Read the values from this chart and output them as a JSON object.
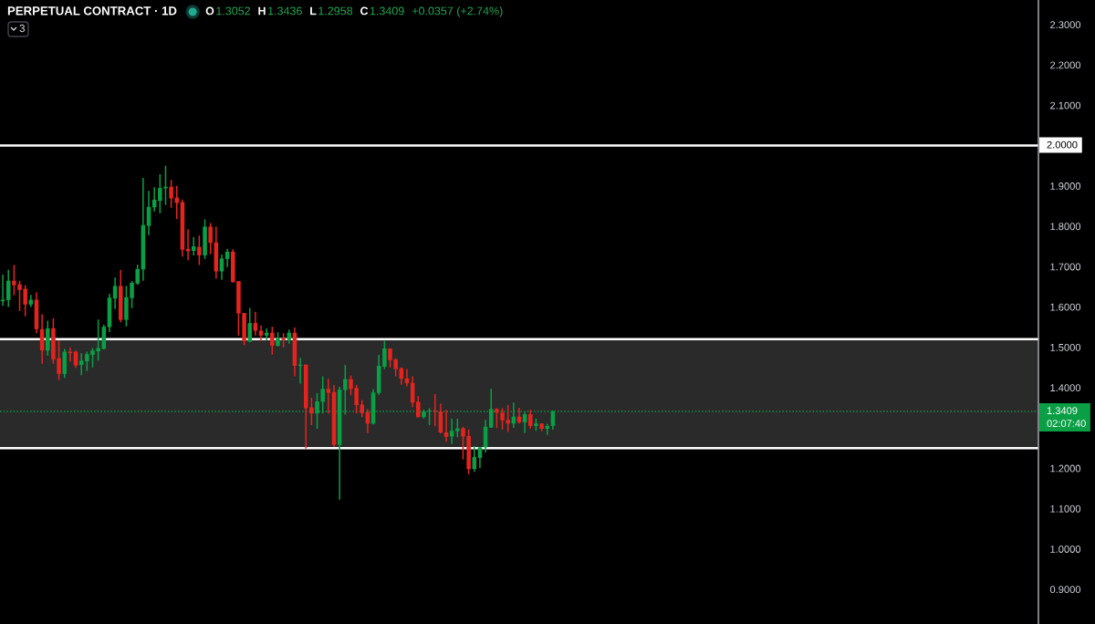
{
  "chart_data": {
    "type": "candlestick",
    "title": "PERPETUAL CONTRACT · 1D",
    "categories": [
      null,
      null,
      null,
      null,
      null,
      null,
      null,
      null,
      null,
      null,
      null,
      null,
      null,
      null,
      null,
      null,
      null,
      null,
      null,
      null,
      null,
      null,
      null,
      null,
      null,
      null,
      null,
      null,
      null,
      null,
      null,
      null,
      null,
      null,
      null,
      null,
      null,
      null,
      null,
      null,
      null,
      null,
      null,
      null,
      null,
      null,
      null,
      null,
      null,
      null,
      null,
      null,
      null,
      null,
      null,
      null,
      null,
      null,
      null,
      null,
      null,
      null,
      null,
      null,
      null,
      null,
      null,
      null,
      null,
      null,
      null,
      null,
      null,
      null,
      null,
      null,
      null,
      null,
      null,
      null,
      null,
      null,
      null,
      null,
      null,
      null,
      null,
      null,
      null,
      null,
      null,
      null,
      null,
      null,
      null,
      null,
      null,
      null,
      null,
      null,
      null,
      null,
      null,
      null,
      null,
      null,
      null,
      null,
      null,
      null,
      null,
      null,
      null,
      null,
      null,
      null,
      null,
      null,
      null,
      null,
      null,
      null,
      null,
      null,
      null,
      null,
      null,
      null,
      null,
      null,
      null,
      null,
      null,
      null,
      null,
      null,
      null,
      null,
      null,
      null,
      null,
      null,
      null,
      null,
      null,
      null,
      null,
      null,
      null,
      null,
      null,
      null,
      null,
      null,
      null,
      null,
      null,
      null,
      null,
      null,
      null,
      null,
      null,
      null,
      null,
      null,
      null,
      null,
      null,
      null,
      null,
      null,
      null,
      null,
      null,
      null,
      null,
      null,
      null,
      null,
      null,
      null,
      null,
      null,
      null
    ],
    "ohlc": [
      [
        1.614,
        1.68,
        1.603,
        1.618
      ],
      [
        1.617,
        1.692,
        1.6,
        1.665
      ],
      [
        1.665,
        1.704,
        1.629,
        1.654
      ],
      [
        1.656,
        1.665,
        1.59,
        1.642
      ],
      [
        1.645,
        1.654,
        1.577,
        1.606
      ],
      [
        1.606,
        1.63,
        1.6,
        1.618
      ],
      [
        1.618,
        1.636,
        1.535,
        1.545
      ],
      [
        1.545,
        1.582,
        1.459,
        1.492
      ],
      [
        1.492,
        1.566,
        1.479,
        1.547
      ],
      [
        1.547,
        1.572,
        1.459,
        1.47
      ],
      [
        1.473,
        1.517,
        1.419,
        1.434
      ],
      [
        1.434,
        1.496,
        1.424,
        1.489
      ],
      [
        1.489,
        1.5,
        1.465,
        1.486
      ],
      [
        1.489,
        1.492,
        1.449,
        1.455
      ],
      [
        1.456,
        1.485,
        1.431,
        1.467
      ],
      [
        1.465,
        1.489,
        1.441,
        1.483
      ],
      [
        1.481,
        1.498,
        1.45,
        1.492
      ],
      [
        1.49,
        1.569,
        1.467,
        1.498
      ],
      [
        1.496,
        1.556,
        1.495,
        1.551
      ],
      [
        1.55,
        1.633,
        1.538,
        1.623
      ],
      [
        1.621,
        1.673,
        1.595,
        1.652
      ],
      [
        1.652,
        1.692,
        1.562,
        1.568
      ],
      [
        1.568,
        1.652,
        1.552,
        1.624
      ],
      [
        1.622,
        1.664,
        1.597,
        1.66
      ],
      [
        1.658,
        1.705,
        1.655,
        1.694
      ],
      [
        1.693,
        1.92,
        1.665,
        1.803
      ],
      [
        1.801,
        1.888,
        1.778,
        1.848
      ],
      [
        1.847,
        1.897,
        1.837,
        1.866
      ],
      [
        1.863,
        1.929,
        1.832,
        1.895
      ],
      [
        1.894,
        1.95,
        1.853,
        1.898
      ],
      [
        1.898,
        1.915,
        1.846,
        1.869
      ],
      [
        1.871,
        1.9,
        1.818,
        1.858
      ],
      [
        1.86,
        1.866,
        1.725,
        1.742
      ],
      [
        1.744,
        1.793,
        1.716,
        1.738
      ],
      [
        1.739,
        1.773,
        1.728,
        1.75
      ],
      [
        1.749,
        1.777,
        1.704,
        1.728
      ],
      [
        1.728,
        1.817,
        1.719,
        1.799
      ],
      [
        1.799,
        1.808,
        1.731,
        1.759
      ],
      [
        1.76,
        1.799,
        1.67,
        1.688
      ],
      [
        1.688,
        1.73,
        1.667,
        1.72
      ],
      [
        1.719,
        1.744,
        1.699,
        1.737
      ],
      [
        1.737,
        1.743,
        1.66,
        1.662
      ],
      [
        1.664,
        1.664,
        1.529,
        1.584
      ],
      [
        1.585,
        1.585,
        1.505,
        1.515
      ],
      [
        1.514,
        1.597,
        1.513,
        1.56
      ],
      [
        1.56,
        1.588,
        1.529,
        1.541
      ],
      [
        1.541,
        1.554,
        1.515,
        1.529
      ],
      [
        1.529,
        1.547,
        1.517,
        1.536
      ],
      [
        1.536,
        1.551,
        1.482,
        1.504
      ],
      [
        1.504,
        1.537,
        1.502,
        1.523
      ],
      [
        1.523,
        1.535,
        1.5,
        1.518
      ],
      [
        1.518,
        1.544,
        1.509,
        1.536
      ],
      [
        1.536,
        1.549,
        1.428,
        1.454
      ],
      [
        1.454,
        1.474,
        1.41,
        1.457
      ],
      [
        1.457,
        1.457,
        1.249,
        1.349
      ],
      [
        1.351,
        1.375,
        1.307,
        1.336
      ],
      [
        1.336,
        1.386,
        1.298,
        1.366
      ],
      [
        1.365,
        1.428,
        1.336,
        1.397
      ],
      [
        1.397,
        1.422,
        1.336,
        1.387
      ],
      [
        1.389,
        1.406,
        1.253,
        1.258
      ],
      [
        1.258,
        1.402,
        1.122,
        1.395
      ],
      [
        1.394,
        1.456,
        1.333,
        1.421
      ],
      [
        1.421,
        1.43,
        1.381,
        1.397
      ],
      [
        1.399,
        1.407,
        1.336,
        1.357
      ],
      [
        1.358,
        1.369,
        1.327,
        1.337
      ],
      [
        1.339,
        1.347,
        1.287,
        1.311
      ],
      [
        1.311,
        1.396,
        1.309,
        1.388
      ],
      [
        1.387,
        1.481,
        1.382,
        1.454
      ],
      [
        1.452,
        1.516,
        1.446,
        1.497
      ],
      [
        1.497,
        1.497,
        1.45,
        1.468
      ],
      [
        1.47,
        1.473,
        1.428,
        1.446
      ],
      [
        1.448,
        1.45,
        1.407,
        1.422
      ],
      [
        1.423,
        1.446,
        1.403,
        1.411
      ],
      [
        1.412,
        1.428,
        1.352,
        1.363
      ],
      [
        1.365,
        1.379,
        1.326,
        1.327
      ],
      [
        1.327,
        1.346,
        1.323,
        1.341
      ],
      [
        1.341,
        1.349,
        1.307,
        1.343
      ],
      [
        1.343,
        1.384,
        1.304,
        1.341
      ],
      [
        1.341,
        1.36,
        1.286,
        1.289
      ],
      [
        1.289,
        1.345,
        1.266,
        1.278
      ],
      [
        1.279,
        1.323,
        1.26,
        1.293
      ],
      [
        1.292,
        1.323,
        1.277,
        1.299
      ],
      [
        1.299,
        1.303,
        1.222,
        1.279
      ],
      [
        1.28,
        1.296,
        1.185,
        1.198
      ],
      [
        1.198,
        1.255,
        1.191,
        1.228
      ],
      [
        1.226,
        1.253,
        1.201,
        1.252
      ],
      [
        1.252,
        1.32,
        1.239,
        1.303
      ],
      [
        1.301,
        1.397,
        1.3,
        1.347
      ],
      [
        1.347,
        1.349,
        1.3,
        1.338
      ],
      [
        1.338,
        1.349,
        1.296,
        1.319
      ],
      [
        1.32,
        1.357,
        1.29,
        1.311
      ],
      [
        1.311,
        1.363,
        1.3,
        1.328
      ],
      [
        1.328,
        1.35,
        1.311,
        1.314
      ],
      [
        1.314,
        1.339,
        1.287,
        1.334
      ],
      [
        1.334,
        1.345,
        1.298,
        1.305
      ],
      [
        1.305,
        1.323,
        1.293,
        1.311
      ],
      [
        1.311,
        1.311,
        1.292,
        1.298
      ],
      [
        1.298,
        1.31,
        1.283,
        1.305
      ],
      [
        1.3052,
        1.3436,
        1.2958,
        1.3409
      ],
      null,
      null,
      null,
      null,
      null,
      null,
      null,
      null,
      null,
      null,
      null,
      null,
      null,
      null,
      null,
      null,
      null,
      null,
      null,
      null,
      null,
      null,
      null,
      null,
      null,
      null,
      null,
      null,
      null,
      null,
      null,
      null,
      null,
      null,
      null,
      null,
      null,
      null,
      null,
      null,
      null,
      null,
      null,
      null,
      null,
      null,
      null,
      null,
      null,
      null,
      null,
      null,
      null,
      null,
      null,
      null,
      null,
      null,
      null,
      null,
      null,
      null,
      null,
      null,
      null,
      null,
      null,
      null,
      null,
      null,
      null,
      null,
      null,
      null,
      null,
      null,
      null,
      null,
      null,
      null,
      null,
      null,
      null,
      null,
      null,
      null
    ],
    "colors": [
      "#0a9e45",
      "#0a9e45",
      "#e3241f",
      "#e3241f",
      "#e3241f",
      "#0a9e45",
      "#e3241f",
      "#e3241f",
      "#0a9e45",
      "#e3241f",
      "#e3241f",
      "#0a9e45",
      "#e3241f",
      "#e3241f",
      "#0a9e45",
      "#0a9e45",
      "#0a9e45",
      "#0a9e45",
      "#0a9e45",
      "#0a9e45",
      "#0a9e45",
      "#e3241f",
      "#0a9e45",
      "#0a9e45",
      "#0a9e45",
      "#0a9e45",
      "#0a9e45",
      "#0a9e45",
      "#0a9e45",
      "#0a9e45",
      "#e3241f",
      "#e3241f",
      "#e3241f",
      "#e3241f",
      "#0a9e45",
      "#e3241f",
      "#0a9e45",
      "#e3241f",
      "#e3241f",
      "#0a9e45",
      "#0a9e45",
      "#e3241f",
      "#e3241f",
      "#e3241f",
      "#0a9e45",
      "#e3241f",
      "#e3241f",
      "#0a9e45",
      "#e3241f",
      "#0a9e45",
      "#e3241f",
      "#0a9e45",
      "#e3241f",
      "#0a9e45",
      "#e3241f",
      "#e3241f",
      "#0a9e45",
      "#0a9e45",
      "#e3241f",
      "#e3241f",
      "#0a9e45",
      "#0a9e45",
      "#e3241f",
      "#e3241f",
      "#e3241f",
      "#e3241f",
      "#0a9e45",
      "#0a9e45",
      "#0a9e45",
      "#e3241f",
      "#e3241f",
      "#e3241f",
      "#e3241f",
      "#e3241f",
      "#e3241f",
      "#0a9e45",
      "#0a9e45",
      "#e3241f",
      "#e3241f",
      "#e3241f",
      "#0a9e45",
      "#0a9e45",
      "#e3241f",
      "#e3241f",
      "#0a9e45",
      "#0a9e45",
      "#0a9e45",
      "#0a9e45",
      "#e3241f",
      "#e3241f",
      "#e3241f",
      "#0a9e45",
      "#e3241f",
      "#0a9e45",
      "#e3241f",
      "#0a9e45",
      "#e3241f",
      "#0a9e45",
      "#0a9e45",
      null,
      null,
      null,
      null,
      null,
      null,
      null,
      null,
      null,
      null,
      null,
      null,
      null,
      null,
      null,
      null,
      null,
      null,
      null,
      null,
      null,
      null,
      null,
      null,
      null,
      null,
      null,
      null,
      null,
      null,
      null,
      null,
      null,
      null,
      null,
      null,
      null,
      null,
      null,
      null,
      null,
      null,
      null,
      null,
      null,
      null,
      null,
      null,
      null,
      null,
      null,
      null,
      null,
      null,
      null,
      null,
      null,
      null,
      null,
      null,
      null,
      null,
      null,
      null,
      null,
      null,
      null,
      null,
      null,
      null,
      null,
      null,
      null,
      null,
      null,
      null,
      null,
      null,
      null,
      null,
      null,
      null,
      null,
      null,
      null,
      null
    ],
    "ylim": [
      0.814,
      2.361
    ],
    "yticks": [
      {
        "value": 0.9,
        "label": "0.9000"
      },
      {
        "value": 1.0,
        "label": "1.0000"
      },
      {
        "value": 1.1,
        "label": "1.1000"
      },
      {
        "value": 1.2,
        "label": "1.2000"
      },
      {
        "value": 1.4,
        "label": "1.4000"
      },
      {
        "value": 1.5,
        "label": "1.5000"
      },
      {
        "value": 1.6,
        "label": "1.6000"
      },
      {
        "value": 1.7,
        "label": "1.7000"
      },
      {
        "value": 1.8,
        "label": "1.8000"
      },
      {
        "value": 1.9,
        "label": "1.9000"
      },
      {
        "value": 2.1,
        "label": "2.1000"
      },
      {
        "value": 2.2,
        "label": "2.2000"
      },
      {
        "value": 2.3,
        "label": "2.3000"
      }
    ],
    "tick_labels": "y",
    "bands": [
      {
        "axis": "y",
        "from": 1.25,
        "to": 1.52,
        "color": "#2a2a2a"
      }
    ],
    "ref_lines": [
      {
        "axis": "y",
        "value": 2.0,
        "label": "2.0000",
        "color": "#ffffff"
      },
      {
        "axis": "y",
        "value": 1.52,
        "color": "#ffffff"
      },
      {
        "axis": "y",
        "value": 1.25,
        "color": "#ffffff"
      },
      {
        "axis": "y",
        "value": 1.3409,
        "label": "1.3409",
        "color": "#0a9e45",
        "line_style": "dotted"
      }
    ],
    "annotations": [
      "O",
      "1.3052",
      "H",
      "1.3436",
      "L",
      "1.2958",
      "C",
      "1.3409",
      "+0.0357 (+2.74%)",
      "3",
      "02:07:40"
    ]
  }
}
